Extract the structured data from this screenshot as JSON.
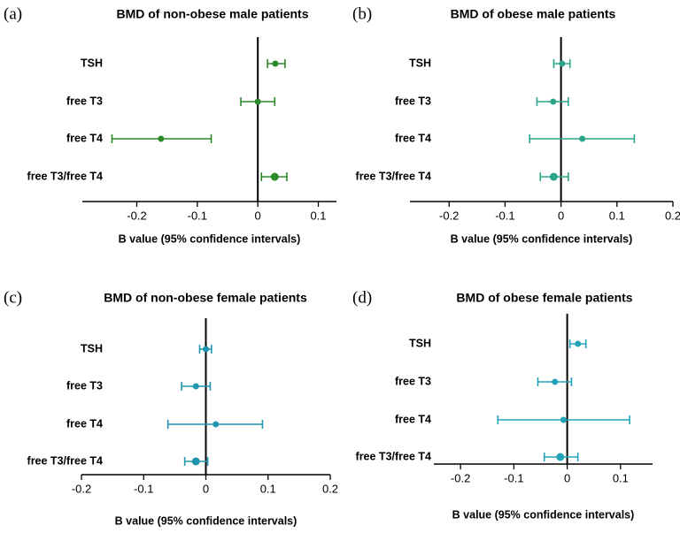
{
  "chart_data": [
    {
      "type": "forest",
      "label": "(a)",
      "title": "BMD of non-obese male patients",
      "categories": [
        "TSH",
        "free T3",
        "free T4",
        "free T3/free T4"
      ],
      "values": [
        0.029,
        0.0,
        -0.16,
        0.028
      ],
      "ci_low": [
        0.016,
        -0.028,
        -0.241,
        0.006
      ],
      "ci_high": [
        0.045,
        0.028,
        -0.077,
        0.048
      ],
      "xlabel": "B value (95% confidence intervals)",
      "xlim": [
        -0.29,
        0.13
      ],
      "xticks": [
        -0.2,
        -0.1,
        0.0,
        0.1
      ],
      "color": "#2a8a2a"
    },
    {
      "type": "forest",
      "label": "(b)",
      "title": "BMD of obese male patients",
      "categories": [
        "TSH",
        "free T3",
        "free T4",
        "free T3/free T4"
      ],
      "values": [
        0.002,
        -0.014,
        0.038,
        -0.013
      ],
      "ci_low": [
        -0.013,
        -0.043,
        -0.056,
        -0.037
      ],
      "ci_high": [
        0.016,
        0.013,
        0.131,
        0.013
      ],
      "xlabel": "B value (95% confidence intervals)",
      "xlim": [
        -0.27,
        0.2
      ],
      "xticks": [
        -0.2,
        -0.1,
        0.0,
        0.1,
        0.2
      ],
      "color": "#2aa58a"
    },
    {
      "type": "forest",
      "label": "(c)",
      "title": "BMD of non-obese female patients",
      "categories": [
        "TSH",
        "free T3",
        "free T4",
        "free T3/free T4"
      ],
      "values": [
        0.0,
        -0.016,
        0.016,
        -0.016
      ],
      "ci_low": [
        -0.01,
        -0.039,
        -0.061,
        -0.034
      ],
      "ci_high": [
        0.009,
        0.007,
        0.091,
        0.003
      ],
      "xlabel": "B value (95% confidence intervals)",
      "xlim": [
        -0.2,
        0.2
      ],
      "xticks": [
        -0.2,
        -0.1,
        0.0,
        0.1,
        0.2
      ],
      "color": "#1f95b0"
    },
    {
      "type": "forest",
      "label": "(d)",
      "title": "BMD of obese female patients",
      "categories": [
        "TSH",
        "free T3",
        "free T4",
        "free T3/free T4"
      ],
      "values": [
        0.02,
        -0.023,
        -0.007,
        -0.013
      ],
      "ci_low": [
        0.005,
        -0.055,
        -0.13,
        -0.043
      ],
      "ci_high": [
        0.035,
        0.008,
        0.117,
        0.02
      ],
      "xlabel": "B value (95% confidence intervals)",
      "xlim": [
        -0.25,
        0.16
      ],
      "xticks": [
        -0.2,
        -0.1,
        0.0,
        0.1
      ],
      "color": "#22a3b8"
    }
  ]
}
